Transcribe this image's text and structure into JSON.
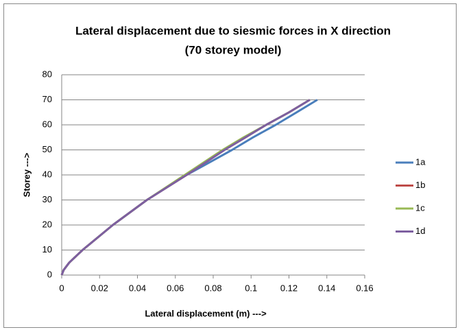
{
  "chart_data": {
    "type": "line",
    "title": [
      "Lateral displacement due to siesmic forces in X direction",
      "(70 storey model)"
    ],
    "x_label": "Lateral displacement (m) --->",
    "y_label": "Storey --->",
    "xlim": [
      0,
      0.16
    ],
    "xticks": [
      0,
      0.02,
      0.04,
      0.06,
      0.08,
      0.1,
      0.12,
      0.14,
      0.16
    ],
    "ylim": [
      0,
      80
    ],
    "yticks": [
      0,
      10,
      20,
      30,
      40,
      50,
      60,
      70,
      80
    ],
    "grid": true,
    "legend": "right",
    "series": [
      {
        "name": "1a",
        "color": "#4a7ebb",
        "x": [
          0,
          0.001,
          0.004,
          0.011,
          0.027,
          0.045,
          0.066,
          0.078,
          0.09,
          0.101,
          0.113,
          0.124,
          0.135
        ],
        "values": [
          0,
          2,
          5,
          10,
          20,
          30,
          40,
          45,
          50,
          55,
          60,
          65,
          70
        ]
      },
      {
        "name": "1b",
        "color": "#be4b48",
        "x": [
          0,
          0.001,
          0.004,
          0.011,
          0.027,
          0.045,
          0.066,
          0.076,
          0.086,
          0.097,
          0.108,
          0.12,
          0.131
        ],
        "values": [
          0,
          2,
          5,
          10,
          20,
          30,
          40,
          45,
          50,
          55,
          60,
          65,
          70
        ]
      },
      {
        "name": "1c",
        "color": "#98b954",
        "x": [
          0,
          0.001,
          0.004,
          0.011,
          0.027,
          0.045,
          0.065,
          0.075,
          0.085,
          0.096,
          0.108,
          0.12,
          0.131
        ],
        "values": [
          0,
          2,
          5,
          10,
          20,
          30,
          40,
          45,
          50,
          55,
          60,
          65,
          70
        ]
      },
      {
        "name": "1d",
        "color": "#7d5fa0",
        "x": [
          0,
          0.001,
          0.004,
          0.011,
          0.027,
          0.045,
          0.066,
          0.076,
          0.086,
          0.097,
          0.108,
          0.12,
          0.131
        ],
        "values": [
          0,
          2,
          5,
          10,
          20,
          30,
          40,
          45,
          50,
          55,
          60,
          65,
          70
        ]
      }
    ]
  }
}
